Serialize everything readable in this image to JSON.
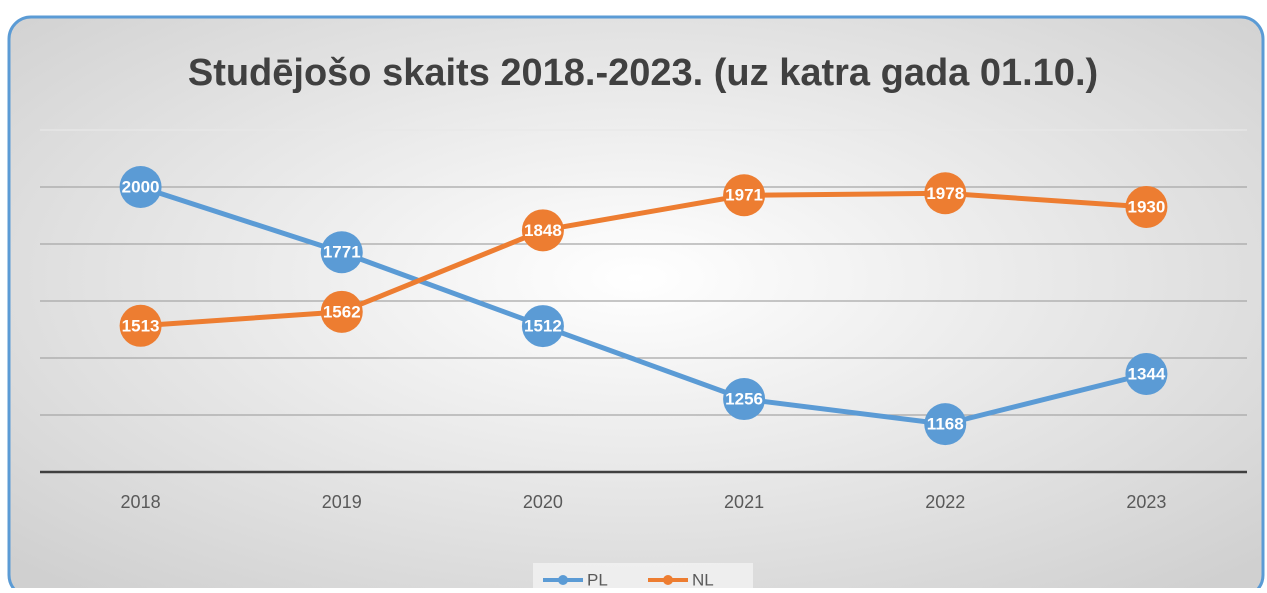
{
  "chart_data": {
    "type": "line",
    "title": "Studējošo skaits 2018.-2023. (uz katra gada 01.10.)",
    "categories": [
      "2018",
      "2019",
      "2020",
      "2021",
      "2022",
      "2023"
    ],
    "series": [
      {
        "name": "PL",
        "color": "#5b9bd5",
        "values": [
          2000,
          1771,
          1512,
          1256,
          1168,
          1344
        ]
      },
      {
        "name": "NL",
        "color": "#ed7d31",
        "values": [
          1513,
          1562,
          1848,
          1971,
          1978,
          1930
        ]
      }
    ],
    "ylim": [
      1000,
      2200
    ],
    "yticks": [
      1000,
      1200,
      1400,
      1600,
      1800,
      2000,
      2200
    ],
    "grid": true,
    "legend": "bottom"
  }
}
